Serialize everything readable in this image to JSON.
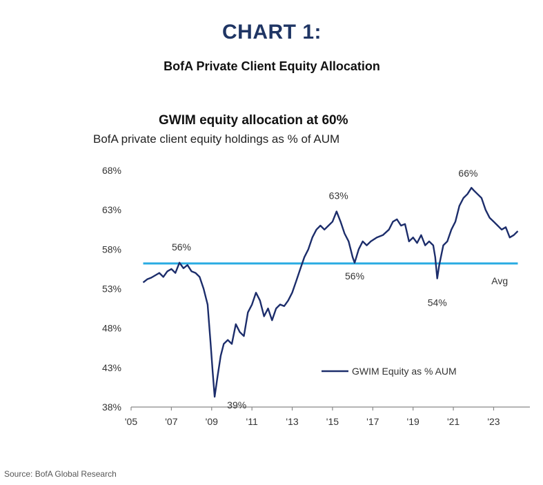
{
  "header": {
    "chart_number": "CHART 1:",
    "chart_name": "BofA Private Client Equity Allocation"
  },
  "source": "Source: BofA Global Research",
  "colors": {
    "series": "#1c2d6b",
    "average": "#29abe2",
    "axis": "#888888",
    "title": "#1f3564"
  },
  "chart_data": {
    "type": "line",
    "title": "GWIM equity allocation at 60%",
    "subtitle": "BofA private client equity holdings as % of AUM",
    "xlabel": "",
    "ylabel": "",
    "xlim": [
      2005,
      2024.8
    ],
    "ylim": [
      38,
      68
    ],
    "yticks": [
      38,
      43,
      48,
      53,
      58,
      63,
      68
    ],
    "ytick_labels": [
      "38%",
      "43%",
      "48%",
      "53%",
      "58%",
      "63%",
      "68%"
    ],
    "xticks": [
      2005,
      2007,
      2009,
      2011,
      2013,
      2015,
      2017,
      2019,
      2021,
      2023
    ],
    "xtick_labels": [
      "'05",
      "'07",
      "'09",
      "'11",
      "'13",
      "'15",
      "'17",
      "'19",
      "'21",
      "'23"
    ],
    "series": [
      {
        "name": "GWIM Equity as % AUM",
        "x": [
          2005.6,
          2005.8,
          2006.0,
          2006.2,
          2006.4,
          2006.6,
          2006.8,
          2007.0,
          2007.2,
          2007.4,
          2007.6,
          2007.8,
          2008.0,
          2008.2,
          2008.4,
          2008.6,
          2008.8,
          2008.95,
          2009.05,
          2009.15,
          2009.3,
          2009.45,
          2009.6,
          2009.8,
          2010.0,
          2010.2,
          2010.4,
          2010.6,
          2010.8,
          2011.0,
          2011.2,
          2011.4,
          2011.6,
          2011.8,
          2012.0,
          2012.2,
          2012.4,
          2012.6,
          2012.8,
          2013.0,
          2013.2,
          2013.4,
          2013.6,
          2013.8,
          2014.0,
          2014.2,
          2014.4,
          2014.6,
          2014.8,
          2015.0,
          2015.2,
          2015.4,
          2015.6,
          2015.8,
          2016.0,
          2016.1,
          2016.3,
          2016.5,
          2016.7,
          2016.9,
          2017.2,
          2017.5,
          2017.8,
          2018.0,
          2018.2,
          2018.4,
          2018.6,
          2018.8,
          2019.0,
          2019.2,
          2019.4,
          2019.6,
          2019.8,
          2020.0,
          2020.1,
          2020.2,
          2020.3,
          2020.5,
          2020.7,
          2020.9,
          2021.1,
          2021.3,
          2021.5,
          2021.7,
          2021.9,
          2022.0,
          2022.2,
          2022.4,
          2022.6,
          2022.8,
          2023.0,
          2023.2,
          2023.4,
          2023.6,
          2023.8,
          2024.0,
          2024.2
        ],
        "y": [
          53.8,
          54.2,
          54.4,
          54.7,
          55.0,
          54.5,
          55.2,
          55.5,
          55.0,
          56.3,
          55.6,
          56.0,
          55.2,
          55.0,
          54.5,
          53.0,
          51.0,
          46.0,
          42.5,
          39.3,
          42.0,
          44.5,
          46.0,
          46.5,
          46.0,
          48.5,
          47.5,
          47.0,
          50.0,
          51.0,
          52.5,
          51.5,
          49.5,
          50.5,
          49.0,
          50.5,
          51.0,
          50.8,
          51.5,
          52.5,
          54.0,
          55.5,
          57.0,
          58.0,
          59.5,
          60.5,
          61.0,
          60.5,
          61.0,
          61.5,
          62.8,
          61.5,
          60.0,
          59.0,
          57.0,
          56.3,
          58.0,
          59.0,
          58.5,
          59.0,
          59.5,
          59.8,
          60.5,
          61.5,
          61.8,
          61.0,
          61.2,
          59.0,
          59.5,
          58.8,
          59.8,
          58.5,
          59.0,
          58.5,
          57.0,
          54.3,
          56.0,
          58.5,
          59.0,
          60.5,
          61.5,
          63.5,
          64.5,
          65.0,
          65.8,
          65.5,
          65.0,
          64.5,
          63.0,
          62.0,
          61.5,
          61.0,
          60.5,
          60.8,
          59.5,
          59.8,
          60.3
        ]
      }
    ],
    "average": {
      "value": 56.2,
      "label": "Avg"
    },
    "annotations": [
      {
        "text": "56%",
        "x": 2007.5,
        "y": 56.3
      },
      {
        "text": "39%",
        "x": 2009.7,
        "y": 39.3
      },
      {
        "text": "63%",
        "x": 2015.3,
        "y": 62.8
      },
      {
        "text": "56%",
        "x": 2016.1,
        "y": 56.3
      },
      {
        "text": "54%",
        "x": 2020.2,
        "y": 54.3
      },
      {
        "text": "66%",
        "x": 2021.8,
        "y": 65.8
      }
    ],
    "legend": {
      "position": "bottom-right",
      "entries": [
        "GWIM Equity as % AUM"
      ]
    },
    "grid": false
  }
}
